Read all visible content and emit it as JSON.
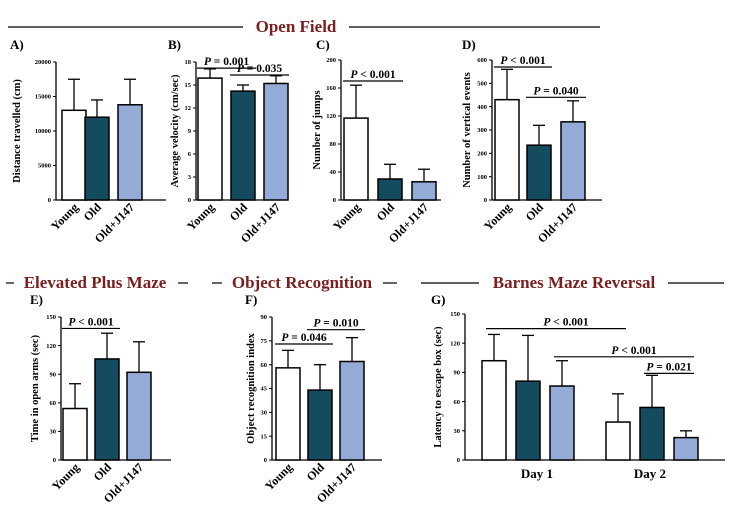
{
  "sections": {
    "open_field": "Open Field",
    "elevated": "Elevated Plus Maze",
    "object": "Object Recognition",
    "barnes": "Barnes Maze Reversal"
  },
  "colors": {
    "young": "#ffffff",
    "old": "#144b5e",
    "j147": "#93abd6",
    "title": "#7a1e1e"
  },
  "chart_data": [
    {
      "type": "bar",
      "panel": "A)",
      "title": "Open Field",
      "ylabel": "Distance travelled (cm)",
      "categories": [
        "Young",
        "Old",
        "Old+J147"
      ],
      "values": [
        13000,
        12000,
        13800
      ],
      "errors": [
        4500,
        2500,
        3700
      ],
      "ylim": [
        0,
        20000
      ],
      "yticks": [
        "0",
        "5000",
        "10000",
        "15000",
        "20000"
      ],
      "annotations": []
    },
    {
      "type": "bar",
      "panel": "B)",
      "title": "Open Field",
      "ylabel": "Average velocity (cm/sec)",
      "categories": [
        "Young",
        "Old",
        "Old+J147"
      ],
      "values": [
        15.9,
        14.2,
        15.2
      ],
      "errors": [
        1.2,
        0.8,
        1.0
      ],
      "ylim": [
        0,
        18
      ],
      "yticks": [
        "0",
        "3",
        "6",
        "9",
        "12",
        "15",
        "18"
      ],
      "annotations": [
        {
          "p": "0.001",
          "from": 0,
          "to": 1,
          "y": 17.2
        },
        {
          "p": "0.035",
          "from": 1,
          "to": 2,
          "y": 16.3
        }
      ]
    },
    {
      "type": "bar",
      "panel": "C)",
      "title": "Open Field",
      "ylabel": "Number of jumps",
      "categories": [
        "Young",
        "Old",
        "Old+J147"
      ],
      "values": [
        117,
        30,
        26
      ],
      "errors": [
        47,
        21,
        18
      ],
      "ylim": [
        0,
        200
      ],
      "yticks": [
        "0",
        "40",
        "80",
        "120",
        "160",
        "200"
      ],
      "annotations": [
        {
          "p": "0.001",
          "pre": "<",
          "from": 0,
          "to": 1,
          "y": 170
        }
      ]
    },
    {
      "type": "bar",
      "panel": "D)",
      "title": "Open Field",
      "ylabel": "Number of vertical events",
      "categories": [
        "Young",
        "Old",
        "Old+J147"
      ],
      "values": [
        430,
        235,
        335
      ],
      "errors": [
        130,
        85,
        90
      ],
      "ylim": [
        0,
        600
      ],
      "yticks": [
        "0",
        "100",
        "200",
        "300",
        "400",
        "500",
        "600"
      ],
      "annotations": [
        {
          "p": "0.001",
          "pre": "<",
          "from": 0,
          "to": 1,
          "y": 570
        },
        {
          "p": "0.040",
          "from": 1,
          "to": 2,
          "y": 440
        }
      ]
    },
    {
      "type": "bar",
      "panel": "E)",
      "title": "Elevated Plus Maze",
      "ylabel": "Time in open arms (sec)",
      "categories": [
        "Young",
        "Old",
        "Old+J147"
      ],
      "values": [
        54,
        106,
        92
      ],
      "errors": [
        26,
        27,
        32
      ],
      "ylim": [
        0,
        150
      ],
      "yticks": [
        "0",
        "30",
        "60",
        "90",
        "120",
        "150"
      ],
      "annotations": [
        {
          "p": "0.001",
          "pre": "<",
          "from": 0,
          "to": 1,
          "y": 138
        }
      ]
    },
    {
      "type": "bar",
      "panel": "F)",
      "title": "Object Recognition",
      "ylabel": "Object recognition index",
      "categories": [
        "Young",
        "Old",
        "Old+J147"
      ],
      "values": [
        58,
        44,
        62
      ],
      "errors": [
        11,
        16,
        15
      ],
      "ylim": [
        0,
        90
      ],
      "yticks": [
        "0",
        "15",
        "30",
        "45",
        "60",
        "75",
        "90"
      ],
      "annotations": [
        {
          "p": "0.046",
          "from": 0,
          "to": 1,
          "y": 73
        },
        {
          "p": "0.010",
          "from": 1,
          "to": 2,
          "y": 82
        }
      ]
    },
    {
      "type": "bar",
      "panel": "G)",
      "title": "Barnes Maze Reversal",
      "ylabel": "Latency to escape box (sec)",
      "categories": [
        "Day 1",
        "Day 2"
      ],
      "series": [
        {
          "name": "Young",
          "values": [
            102,
            39
          ],
          "errors": [
            27,
            29
          ]
        },
        {
          "name": "Old",
          "values": [
            81,
            54
          ],
          "errors": [
            47,
            33
          ]
        },
        {
          "name": "Old+J147",
          "values": [
            76,
            23
          ],
          "errors": [
            26,
            7
          ]
        }
      ],
      "ylim": [
        0,
        150
      ],
      "yticks": [
        "0",
        "30",
        "60",
        "90",
        "120",
        "150"
      ],
      "annotations": [
        {
          "p": "0.001",
          "pre": "<",
          "from": "Day 1 Young",
          "to": "Day 2 Young",
          "y": 135
        },
        {
          "p": "0.001",
          "pre": "<",
          "from": "Day 1 Old+J147",
          "to": "Day 2 Old+J147",
          "y": 106
        },
        {
          "p": "0.021",
          "from": "Day 2 Old",
          "to": "Day 2 Old+J147",
          "y": 89
        }
      ]
    }
  ]
}
